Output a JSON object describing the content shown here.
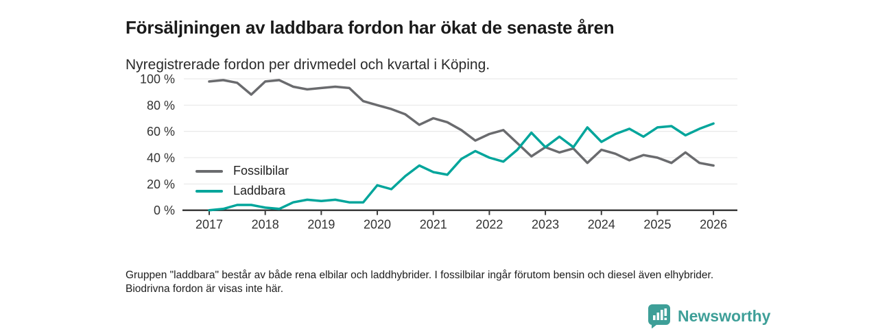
{
  "header": {
    "title": "Försäljningen av laddbara fordon har ökat de senaste åren",
    "subtitle": "Nyregistrerade fordon per drivmedel och kvartal i Köping."
  },
  "chart_data": {
    "type": "line",
    "title": "Nyregistrerade fordon per drivmedel och kvartal i Köping",
    "x_unit": "kvartal",
    "categories": [
      "2017 Q1",
      "2017 Q2",
      "2017 Q3",
      "2017 Q4",
      "2018 Q1",
      "2018 Q2",
      "2018 Q3",
      "2018 Q4",
      "2019 Q1",
      "2019 Q2",
      "2019 Q3",
      "2019 Q4",
      "2020 Q1",
      "2020 Q2",
      "2020 Q3",
      "2020 Q4",
      "2021 Q1",
      "2021 Q2",
      "2021 Q3",
      "2021 Q4",
      "2022 Q1",
      "2022 Q2",
      "2022 Q3",
      "2022 Q4",
      "2023 Q1",
      "2023 Q2",
      "2023 Q3",
      "2023 Q4",
      "2024 Q1",
      "2024 Q2",
      "2024 Q3",
      "2024 Q4",
      "2025 Q1",
      "2025 Q2",
      "2025 Q3",
      "2025 Q4",
      "2026 Q1"
    ],
    "series": [
      {
        "name": "Fossilbilar",
        "color": "#6a6b6e",
        "values": [
          98,
          99,
          97,
          88,
          98,
          99,
          94,
          92,
          93,
          94,
          93,
          83,
          80,
          77,
          73,
          65,
          70,
          67,
          61,
          53,
          58,
          61,
          51,
          41,
          48,
          44,
          47,
          36,
          46,
          43,
          38,
          42,
          40,
          36,
          44,
          36,
          34
        ]
      },
      {
        "name": "Laddbara",
        "color": "#00a59b",
        "values": [
          0,
          1,
          4,
          4,
          2,
          1,
          6,
          8,
          7,
          8,
          6,
          6,
          19,
          16,
          26,
          34,
          29,
          27,
          39,
          45,
          40,
          37,
          46,
          59,
          48,
          56,
          48,
          63,
          52,
          58,
          62,
          56,
          63,
          64,
          57,
          62,
          66
        ]
      }
    ],
    "ylim": [
      0,
      100
    ],
    "y_ticks": [
      0,
      20,
      40,
      60,
      80,
      100
    ],
    "y_tick_suffix": " %",
    "x_tick_labels": [
      "2017",
      "2018",
      "2019",
      "2020",
      "2021",
      "2022",
      "2023",
      "2024",
      "2025",
      "2026"
    ],
    "grid": "horizontal",
    "legend_position": "inside-left",
    "axis_color": "#3b3b3b",
    "grid_color": "#e4e4e4"
  },
  "footer": {
    "note": "Gruppen \"laddbara\" består av både rena elbilar och laddhybrider. I fossilbilar ingår förutom bensin och diesel även elhybrider. Biodrivna fordon är visas inte här."
  },
  "branding": {
    "logo_text": "Newsworthy",
    "logo_color": "#3e9f98",
    "logo_icon": "bar-chart-pin-icon"
  }
}
